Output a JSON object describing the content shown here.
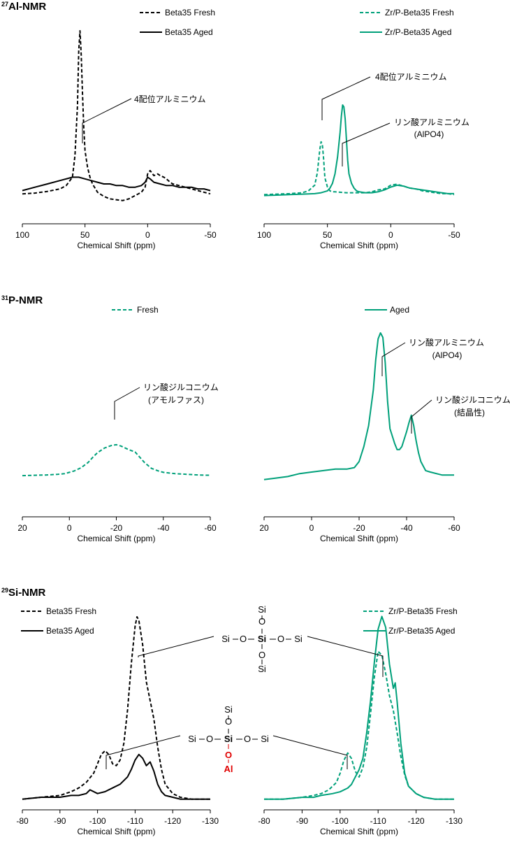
{
  "colors": {
    "black": "#000000",
    "green": "#00A07A",
    "red": "#E00000"
  },
  "sections": [
    {
      "id": "al",
      "sup": "27",
      "name": "Al-NMR"
    },
    {
      "id": "p",
      "sup": "31",
      "name": "P-NMR"
    },
    {
      "id": "si",
      "sup": "29",
      "name": "Si-NMR"
    }
  ],
  "chart_data": [
    {
      "type": "line",
      "section": "27Al-NMR",
      "xlabel": "Chemical Shift  (ppm)",
      "xlim": [
        100,
        -50
      ],
      "xticks": [
        "100",
        "50",
        "0",
        "-50"
      ],
      "series": [
        {
          "name": "Beta35 Fresh",
          "style": "dashed",
          "color": "#000000",
          "x": [
            100,
            90,
            80,
            70,
            65,
            60,
            58,
            56,
            55,
            54,
            53,
            52,
            51,
            50,
            48,
            46,
            44,
            40,
            35,
            30,
            25,
            20,
            15,
            10,
            5,
            2,
            0,
            -2,
            -5,
            -8,
            -10,
            -13,
            -15,
            -18,
            -20,
            -25,
            -30,
            -35,
            -40,
            -45,
            -50
          ],
          "y": [
            2,
            2.5,
            3.5,
            5,
            7,
            12,
            25,
            55,
            88,
            100,
            85,
            62,
            42,
            28,
            18,
            12,
            8,
            3,
            0.5,
            -1,
            -1.5,
            -2,
            -1,
            1,
            3,
            6,
            14,
            16,
            13,
            14,
            13,
            12,
            11,
            9,
            8,
            7,
            6,
            5,
            4,
            3,
            2
          ]
        },
        {
          "name": "Beta35 Aged",
          "style": "solid",
          "color": "#000000",
          "x": [
            100,
            90,
            80,
            70,
            60,
            55,
            50,
            45,
            40,
            35,
            30,
            25,
            20,
            15,
            10,
            5,
            2,
            0,
            -2,
            -5,
            -10,
            -15,
            -20,
            -25,
            -30,
            -35,
            -40,
            -45,
            -50
          ],
          "y": [
            4,
            6,
            8,
            10,
            12,
            12,
            11,
            10,
            9,
            8,
            8,
            7,
            7,
            6,
            6,
            7,
            9,
            12,
            11,
            9,
            8,
            7,
            7,
            6,
            6,
            6,
            5,
            5,
            4
          ]
        }
      ]
    },
    {
      "type": "line",
      "section": "27Al-NMR",
      "xlabel": "Chemical Shift  (ppm)",
      "xlim": [
        100,
        -50
      ],
      "xticks": [
        "100",
        "50",
        "0",
        "-50"
      ],
      "annotations": [
        "4配位アルミニウム",
        "リン酸アルミニウム",
        "(AlPO4)"
      ],
      "series": [
        {
          "name": "Zr/P-Beta35 Fresh",
          "style": "dashed",
          "color": "#00A07A",
          "x": [
            100,
            90,
            80,
            70,
            65,
            60,
            58,
            56,
            55,
            54,
            53,
            52,
            50,
            48,
            46,
            44,
            40,
            35,
            30,
            25,
            20,
            15,
            10,
            5,
            0,
            -5,
            -10,
            -15,
            -20,
            -25,
            -30,
            -35,
            -40,
            -45,
            -50
          ],
          "y": [
            2,
            2.5,
            3,
            4,
            6,
            12,
            25,
            50,
            58,
            55,
            40,
            20,
            10,
            6,
            5,
            5,
            4.5,
            4,
            4,
            4,
            4,
            5,
            7,
            8,
            12,
            13,
            11,
            9,
            8,
            6,
            5,
            4,
            3,
            3,
            2
          ]
        },
        {
          "name": "Zr/P-Beta35 Aged",
          "style": "solid",
          "color": "#00A07A",
          "x": [
            100,
            90,
            80,
            70,
            60,
            55,
            50,
            48,
            46,
            44,
            42,
            40,
            39,
            38,
            37,
            36,
            35,
            34,
            33,
            31,
            29,
            27,
            25,
            20,
            15,
            10,
            5,
            0,
            -5,
            -10,
            -15,
            -20,
            -25,
            -30,
            -35,
            -40,
            -45,
            -50
          ],
          "y": [
            1,
            1.5,
            2,
            2.5,
            3,
            4,
            6,
            9,
            14,
            24,
            42,
            68,
            85,
            97,
            95,
            82,
            60,
            38,
            24,
            14,
            9,
            6,
            5,
            4,
            4,
            5,
            7,
            10,
            12,
            11,
            9,
            8,
            7,
            6,
            5,
            4,
            3,
            3
          ]
        }
      ]
    },
    {
      "type": "line",
      "section": "31P-NMR",
      "xlabel": "Chemical Shift  (ppm)",
      "xlim": [
        20,
        -60
      ],
      "xticks": [
        "20",
        "0",
        "-20",
        "-40",
        "-60"
      ],
      "annotations": [
        "リン酸ジルコニウム",
        "(アモルファス)"
      ],
      "series": [
        {
          "name": "Fresh",
          "style": "dashed",
          "color": "#00A07A",
          "x": [
            20,
            15,
            10,
            5,
            2,
            0,
            -2,
            -5,
            -8,
            -10,
            -12,
            -15,
            -18,
            -20,
            -22,
            -25,
            -28,
            -30,
            -32,
            -35,
            -38,
            -40,
            -45,
            -50,
            -55,
            -60
          ],
          "y": [
            2,
            2.5,
            3,
            4,
            5,
            7,
            9,
            14,
            22,
            30,
            37,
            44,
            48,
            49,
            47,
            42,
            38,
            30,
            22,
            13,
            9,
            7,
            5,
            4,
            3,
            2.5
          ]
        }
      ]
    },
    {
      "type": "line",
      "section": "31P-NMR",
      "xlabel": "Chemical Shift  (ppm)",
      "xlim": [
        20,
        -60
      ],
      "xticks": [
        "20",
        "0",
        "-20",
        "-40",
        "-60"
      ],
      "annotations": [
        "リン酸アルミニウム",
        "(AlPO4)",
        "リン酸ジルコニウム",
        "(結晶性)"
      ],
      "series": [
        {
          "name": "Aged",
          "style": "solid",
          "color": "#00A07A",
          "x": [
            20,
            15,
            10,
            5,
            0,
            -5,
            -10,
            -15,
            -18,
            -20,
            -22,
            -24,
            -26,
            -27,
            -28,
            -29,
            -30,
            -31,
            -32,
            -33,
            -35,
            -36,
            -37,
            -38,
            -40,
            -41,
            -42,
            -43,
            -44,
            -45,
            -46,
            -48,
            -50,
            -55,
            -60
          ],
          "y": [
            2,
            3,
            4,
            6,
            7,
            8,
            9,
            9,
            10,
            14,
            24,
            38,
            62,
            82,
            96,
            100,
            97,
            80,
            54,
            36,
            26,
            22,
            22,
            24,
            34,
            40,
            45,
            38,
            28,
            20,
            14,
            8,
            7,
            5,
            5
          ]
        }
      ]
    },
    {
      "type": "line",
      "section": "29Si-NMR",
      "xlabel": "Chemical Shift  (ppm)",
      "xlim": [
        -80,
        -130
      ],
      "xticks": [
        "-80",
        "-90",
        "-100",
        "-110",
        "-120",
        "-130"
      ],
      "series": [
        {
          "name": "Beta35 Fresh",
          "style": "dashed",
          "color": "#000000",
          "x": [
            -80,
            -85,
            -90,
            -93,
            -95,
            -97,
            -99,
            -100,
            -101,
            -102,
            -103,
            -104,
            -105,
            -106,
            -107,
            -108,
            -109,
            -110,
            -110.5,
            -111,
            -112,
            -113,
            -114,
            -115,
            -116,
            -117,
            -118,
            -120,
            -122,
            -125,
            -130
          ],
          "y": [
            2,
            3,
            4,
            6,
            8,
            11,
            16,
            21,
            26,
            28,
            26,
            21,
            20,
            23,
            32,
            50,
            75,
            95,
            100,
            98,
            85,
            65,
            55,
            45,
            30,
            18,
            10,
            5,
            3,
            2,
            2
          ]
        },
        {
          "name": "Beta35 Aged",
          "style": "solid",
          "color": "#000000",
          "x": [
            -80,
            -85,
            -90,
            -93,
            -95,
            -97,
            -98,
            -100,
            -102,
            -104,
            -106,
            -108,
            -109,
            -110,
            -111,
            -112,
            -113,
            -114,
            -115,
            -116,
            -117,
            -118,
            -120,
            -122,
            -125,
            -130
          ],
          "y": [
            2,
            3,
            3,
            4,
            4,
            5,
            7,
            5,
            6,
            8,
            10,
            14,
            18,
            23,
            26,
            24,
            20,
            22,
            17,
            10,
            6,
            4,
            3,
            2,
            2,
            2
          ]
        }
      ]
    },
    {
      "type": "line",
      "section": "29Si-NMR",
      "xlabel": "Chemical Shift  (ppm)",
      "xlim": [
        -80,
        -130
      ],
      "xticks": [
        "-80",
        "-90",
        "-100",
        "-110",
        "-120",
        "-130"
      ],
      "series": [
        {
          "name": "Zr/P-Beta35 Fresh",
          "style": "dashed",
          "color": "#00A07A",
          "x": [
            -80,
            -85,
            -90,
            -93,
            -95,
            -97,
            -99,
            -100,
            -101,
            -102,
            -103,
            -104,
            -105,
            -106,
            -107,
            -108,
            -109,
            -110,
            -111,
            -112,
            -113,
            -114,
            -115,
            -116,
            -117,
            -118,
            -120,
            -122,
            -125,
            -130
          ],
          "y": [
            2,
            2,
            3,
            4,
            5,
            7,
            11,
            16,
            23,
            27,
            24,
            17,
            14,
            19,
            30,
            48,
            68,
            82,
            80,
            70,
            58,
            50,
            38,
            25,
            15,
            9,
            5,
            3,
            2,
            2
          ]
        },
        {
          "name": "Zr/P-Beta35 Aged",
          "style": "solid",
          "color": "#00A07A",
          "x": [
            -80,
            -85,
            -90,
            -93,
            -95,
            -98,
            -100,
            -102,
            -103,
            -104,
            -105,
            -106,
            -107,
            -108,
            -109,
            -110,
            -111,
            -112,
            -113,
            -114,
            -114.5,
            -115,
            -116,
            -117,
            -118,
            -120,
            -122,
            -125,
            -130
          ],
          "y": [
            2,
            2,
            3,
            3,
            4,
            5,
            6,
            8,
            10,
            14,
            18,
            24,
            38,
            55,
            76,
            94,
            101,
            95,
            75,
            62,
            65,
            55,
            32,
            16,
            9,
            5,
            3,
            2,
            2
          ]
        }
      ]
    }
  ],
  "structure_labels": {
    "si": "Si",
    "o": "O",
    "al": "Al"
  }
}
